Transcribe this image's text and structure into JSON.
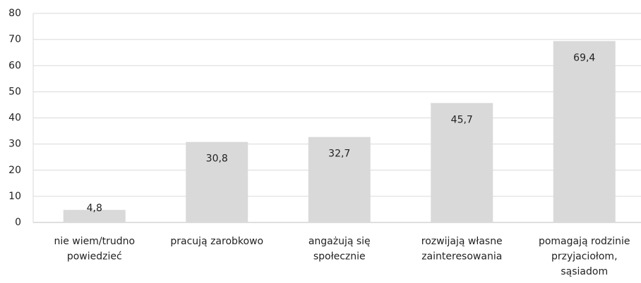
{
  "chart_data": {
    "type": "bar",
    "categories": [
      [
        "nie wiem/trudno",
        "powiedzieć"
      ],
      [
        "pracują zarobkowo"
      ],
      [
        "angażują się",
        "społecznie"
      ],
      [
        "rozwijają własne",
        "zainteresowania"
      ],
      [
        "pomagają rodzinie",
        "przyjaciołom,",
        "sąsiadom"
      ]
    ],
    "values": [
      4.8,
      30.8,
      32.7,
      45.7,
      69.4
    ],
    "value_labels": [
      "4,8",
      "30,8",
      "32,7",
      "45,7",
      "69,4"
    ],
    "color": "#d9d9d9",
    "ylim": [
      0,
      80
    ],
    "yticks": [
      0,
      10,
      20,
      30,
      40,
      50,
      60,
      70,
      80
    ],
    "grid": true
  }
}
